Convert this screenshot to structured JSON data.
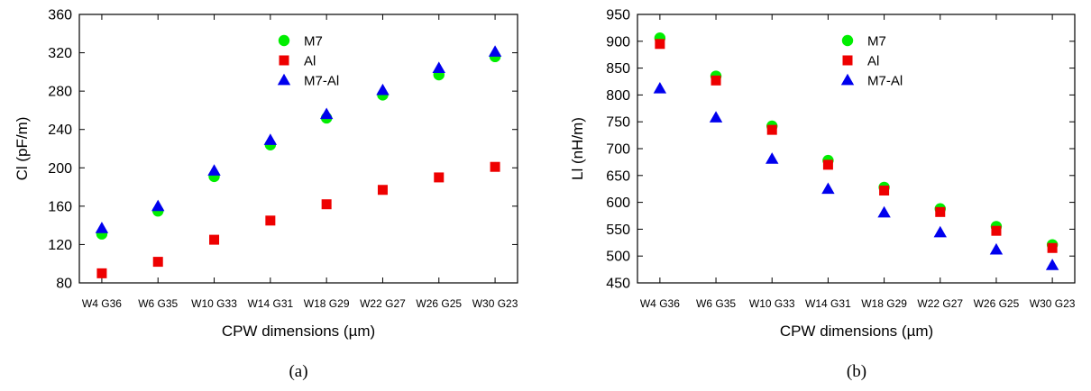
{
  "colors": {
    "M7": "#00ee00",
    "Al": "#ee0000",
    "M7-Al": "#0000ee"
  },
  "chart_data": [
    {
      "type": "scatter",
      "caption": "(a)",
      "xlabel": "CPW dimensions (µm)",
      "ylabel": "Cl (pF/m)",
      "categories": [
        "W4 G36",
        "W6 G35",
        "W10 G33",
        "W14 G31",
        "W18 G29",
        "W22 G27",
        "W26 G25",
        "W30 G23"
      ],
      "ylim": [
        80,
        360
      ],
      "yticks": [
        80,
        120,
        160,
        200,
        240,
        280,
        320,
        360
      ],
      "legend_position": "top-right",
      "series": [
        {
          "name": "M7",
          "marker": "circle",
          "values": [
            131,
            155,
            191,
            224,
            252,
            276,
            297,
            316
          ]
        },
        {
          "name": "Al",
          "marker": "square",
          "values": [
            90,
            102,
            125,
            145,
            162,
            177,
            190,
            201
          ]
        },
        {
          "name": "M7-Al",
          "marker": "triangle",
          "values": [
            137,
            160,
            197,
            229,
            256,
            281,
            304,
            321
          ]
        }
      ]
    },
    {
      "type": "scatter",
      "caption": "(b)",
      "xlabel": "CPW dimensions (µm)",
      "ylabel": "Ll (nH/m)",
      "categories": [
        "W4 G36",
        "W6 G35",
        "W10 G33",
        "W14 G31",
        "W18 G29",
        "W22 G27",
        "W26 G25",
        "W30 G23"
      ],
      "ylim": [
        450,
        950
      ],
      "yticks": [
        450,
        500,
        550,
        600,
        650,
        700,
        750,
        800,
        850,
        900,
        950
      ],
      "legend_position": "top-right",
      "series": [
        {
          "name": "M7",
          "marker": "circle",
          "values": [
            906,
            835,
            742,
            678,
            628,
            588,
            555,
            521
          ]
        },
        {
          "name": "Al",
          "marker": "square",
          "values": [
            895,
            827,
            735,
            670,
            622,
            582,
            547,
            515
          ]
        },
        {
          "name": "M7-Al",
          "marker": "triangle",
          "values": [
            812,
            758,
            681,
            625,
            581,
            544,
            512,
            483
          ]
        }
      ]
    }
  ]
}
